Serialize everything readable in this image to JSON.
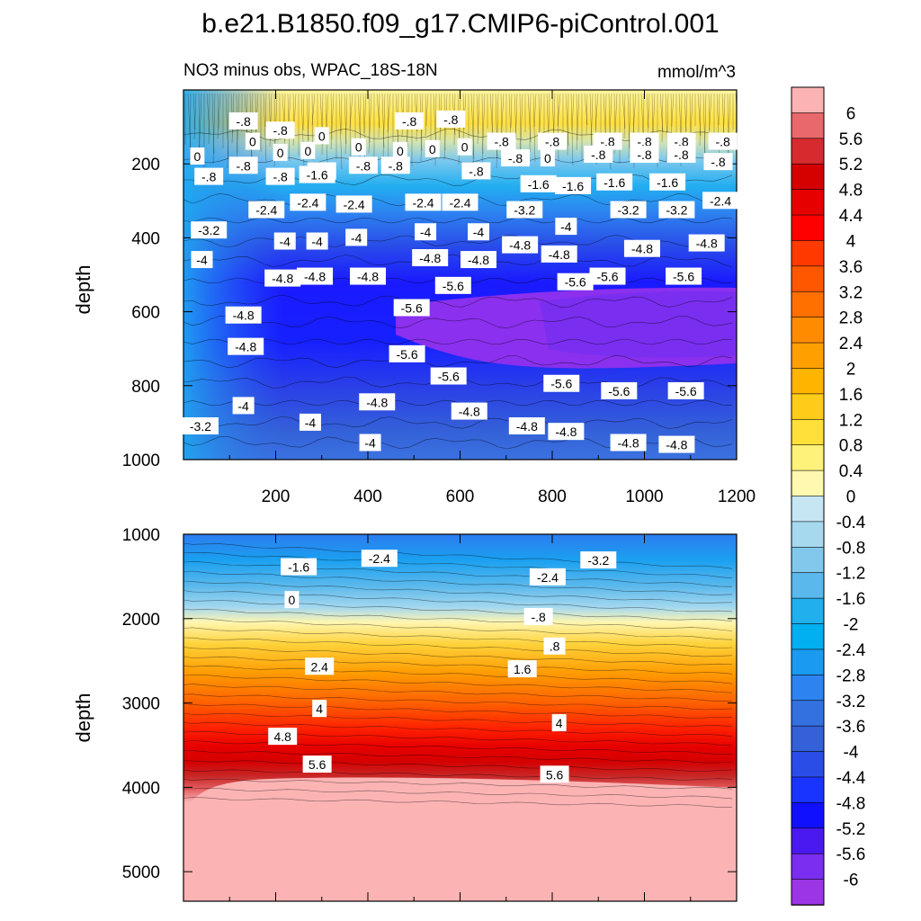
{
  "figure": {
    "title": "b.e21.B1850.f09_g17.CMIP6-piControl.001",
    "subtitle": "NO3 minus obs, WPAC_18S-18N",
    "units": "mmol/m^3"
  },
  "colorbar": {
    "labels": [
      "6",
      "5.6",
      "5.2",
      "4.8",
      "4.4",
      "4",
      "3.6",
      "3.2",
      "2.8",
      "2.4",
      "2",
      "1.6",
      "1.2",
      "0.8",
      "0.4",
      "0",
      "-0.4",
      "-0.8",
      "-1.2",
      "-1.6",
      "-2",
      "-2.4",
      "-2.8",
      "-3.2",
      "-3.6",
      "-4",
      "-4.4",
      "-4.8",
      "-5.2",
      "-5.6",
      "-6"
    ],
    "colors_top_to_bottom": [
      "#fbb3b3",
      "#e8686b",
      "#d72a2e",
      "#d50000",
      "#e60000",
      "#ff0000",
      "#ff3a00",
      "#ff5700",
      "#ff7000",
      "#ff8c00",
      "#ffa000",
      "#ffb400",
      "#ffcc1a",
      "#ffe03a",
      "#fff27a",
      "#fff8b0",
      "#c6e6f4",
      "#a6d8ee",
      "#82c8ec",
      "#5ab8ec",
      "#20b0ee",
      "#00b0f0",
      "#1a9af0",
      "#2d84f0",
      "#3370e0",
      "#3460d8",
      "#2a4de8",
      "#1a34ff",
      "#1010ff",
      "#4a18f0",
      "#7a2ef0",
      "#9b35e6"
    ]
  },
  "chart_data": [
    {
      "type": "heatmap",
      "title": "NO3 minus obs, WPAC_18S-18N",
      "units": "mmol/m^3",
      "xlabel": "",
      "ylabel": "depth",
      "xlim": [
        0,
        1200
      ],
      "ylim": [
        1000,
        0
      ],
      "xticks": [
        200,
        400,
        600,
        800,
        1000,
        1200
      ],
      "yticks": [
        200,
        400,
        600,
        800,
        1000
      ],
      "contour_labels": [
        {
          "x": 130,
          "y": 85,
          "text": "-.8"
        },
        {
          "x": 150,
          "y": 140,
          "text": "0"
        },
        {
          "x": 210,
          "y": 110,
          "text": "-.8"
        },
        {
          "x": 300,
          "y": 125,
          "text": "0"
        },
        {
          "x": 490,
          "y": 85,
          "text": "-.8"
        },
        {
          "x": 580,
          "y": 80,
          "text": "-.8"
        },
        {
          "x": 690,
          "y": 140,
          "text": "-.8"
        },
        {
          "x": 800,
          "y": 140,
          "text": "-.8"
        },
        {
          "x": 920,
          "y": 140,
          "text": "-.8"
        },
        {
          "x": 1000,
          "y": 140,
          "text": "-.8"
        },
        {
          "x": 1080,
          "y": 140,
          "text": "-.8"
        },
        {
          "x": 1170,
          "y": 140,
          "text": "-.8"
        },
        {
          "x": 30,
          "y": 180,
          "text": "0"
        },
        {
          "x": 130,
          "y": 205,
          "text": "-.8"
        },
        {
          "x": 210,
          "y": 170,
          "text": "0"
        },
        {
          "x": 270,
          "y": 165,
          "text": "0"
        },
        {
          "x": 380,
          "y": 155,
          "text": "0"
        },
        {
          "x": 470,
          "y": 165,
          "text": "0"
        },
        {
          "x": 540,
          "y": 160,
          "text": "0"
        },
        {
          "x": 610,
          "y": 155,
          "text": "0"
        },
        {
          "x": 720,
          "y": 185,
          "text": "-.8"
        },
        {
          "x": 790,
          "y": 185,
          "text": "0"
        },
        {
          "x": 900,
          "y": 175,
          "text": "-.8"
        },
        {
          "x": 1000,
          "y": 175,
          "text": "-.8"
        },
        {
          "x": 1080,
          "y": 175,
          "text": "-.8"
        },
        {
          "x": 1160,
          "y": 195,
          "text": "-.8"
        },
        {
          "x": 55,
          "y": 235,
          "text": "-.8"
        },
        {
          "x": 210,
          "y": 235,
          "text": "-.8"
        },
        {
          "x": 300,
          "y": 220,
          "text": "-.8"
        },
        {
          "x": 390,
          "y": 205,
          "text": "-.8"
        },
        {
          "x": 460,
          "y": 205,
          "text": "-.8"
        },
        {
          "x": 635,
          "y": 220,
          "text": "-.8"
        },
        {
          "x": 290,
          "y": 230,
          "text": "-1.6"
        },
        {
          "x": 770,
          "y": 255,
          "text": "-1.6"
        },
        {
          "x": 845,
          "y": 260,
          "text": "-1.6"
        },
        {
          "x": 935,
          "y": 250,
          "text": "-1.6"
        },
        {
          "x": 1050,
          "y": 250,
          "text": "-1.6"
        },
        {
          "x": 180,
          "y": 325,
          "text": "-2.4"
        },
        {
          "x": 270,
          "y": 305,
          "text": "-2.4"
        },
        {
          "x": 370,
          "y": 310,
          "text": "-2.4"
        },
        {
          "x": 520,
          "y": 305,
          "text": "-2.4"
        },
        {
          "x": 600,
          "y": 305,
          "text": "-2.4"
        },
        {
          "x": 1165,
          "y": 300,
          "text": "-2.4"
        },
        {
          "x": 740,
          "y": 325,
          "text": "-3.2"
        },
        {
          "x": 965,
          "y": 325,
          "text": "-3.2"
        },
        {
          "x": 1070,
          "y": 325,
          "text": "-3.2"
        },
        {
          "x": 55,
          "y": 380,
          "text": "-3.2"
        },
        {
          "x": 220,
          "y": 410,
          "text": "-4"
        },
        {
          "x": 290,
          "y": 410,
          "text": "-4"
        },
        {
          "x": 375,
          "y": 400,
          "text": "-4"
        },
        {
          "x": 525,
          "y": 385,
          "text": "-4"
        },
        {
          "x": 640,
          "y": 385,
          "text": "-4"
        },
        {
          "x": 830,
          "y": 370,
          "text": "-4"
        },
        {
          "x": 40,
          "y": 460,
          "text": "-4"
        },
        {
          "x": 535,
          "y": 455,
          "text": "-4.8"
        },
        {
          "x": 640,
          "y": 460,
          "text": "-4.8"
        },
        {
          "x": 730,
          "y": 420,
          "text": "-4.8"
        },
        {
          "x": 815,
          "y": 445,
          "text": "-4.8"
        },
        {
          "x": 995,
          "y": 430,
          "text": "-4.8"
        },
        {
          "x": 1135,
          "y": 415,
          "text": "-4.8"
        },
        {
          "x": 215,
          "y": 510,
          "text": "-4.8"
        },
        {
          "x": 285,
          "y": 505,
          "text": "-4.8"
        },
        {
          "x": 400,
          "y": 505,
          "text": "-4.8"
        },
        {
          "x": 850,
          "y": 520,
          "text": "-5.6"
        },
        {
          "x": 920,
          "y": 505,
          "text": "-5.6"
        },
        {
          "x": 1085,
          "y": 505,
          "text": "-5.6"
        },
        {
          "x": 585,
          "y": 530,
          "text": "-5.6"
        },
        {
          "x": 495,
          "y": 590,
          "text": "-5.6"
        },
        {
          "x": 130,
          "y": 610,
          "text": "-4.8"
        },
        {
          "x": 135,
          "y": 695,
          "text": "-4.8"
        },
        {
          "x": 485,
          "y": 715,
          "text": "-5.6"
        },
        {
          "x": 575,
          "y": 775,
          "text": "-5.6"
        },
        {
          "x": 820,
          "y": 795,
          "text": "-5.6"
        },
        {
          "x": 945,
          "y": 815,
          "text": "-5.6"
        },
        {
          "x": 1090,
          "y": 815,
          "text": "-5.6"
        },
        {
          "x": 130,
          "y": 855,
          "text": "-4"
        },
        {
          "x": 420,
          "y": 845,
          "text": "-4.8"
        },
        {
          "x": 620,
          "y": 870,
          "text": "-4.8"
        },
        {
          "x": 37,
          "y": 910,
          "text": "-3.2"
        },
        {
          "x": 275,
          "y": 900,
          "text": "-4"
        },
        {
          "x": 745,
          "y": 910,
          "text": "-4.8"
        },
        {
          "x": 830,
          "y": 925,
          "text": "-4.8"
        },
        {
          "x": 965,
          "y": 955,
          "text": "-4.8"
        },
        {
          "x": 1070,
          "y": 960,
          "text": "-4.8"
        },
        {
          "x": 405,
          "y": 955,
          "text": "-4"
        }
      ]
    },
    {
      "type": "heatmap",
      "xlabel": "",
      "ylabel": "depth",
      "xlim": [
        0,
        1200
      ],
      "ylim": [
        5350,
        1000
      ],
      "xticks": [
        200,
        400,
        600,
        800,
        1000,
        1200
      ],
      "yticks": [
        1000,
        2000,
        3000,
        4000,
        5000
      ],
      "contour_labels": [
        {
          "x": 250,
          "y": 1390,
          "text": "-1.6"
        },
        {
          "x": 425,
          "y": 1290,
          "text": "-2.4"
        },
        {
          "x": 790,
          "y": 1510,
          "text": "-2.4"
        },
        {
          "x": 900,
          "y": 1310,
          "text": "-3.2"
        },
        {
          "x": 235,
          "y": 1780,
          "text": "0"
        },
        {
          "x": 770,
          "y": 1980,
          "text": "-.8"
        },
        {
          "x": 805,
          "y": 2330,
          "text": ".8"
        },
        {
          "x": 295,
          "y": 2570,
          "text": "2.4"
        },
        {
          "x": 735,
          "y": 2600,
          "text": "1.6"
        },
        {
          "x": 295,
          "y": 3070,
          "text": "4"
        },
        {
          "x": 815,
          "y": 3240,
          "text": "4"
        },
        {
          "x": 215,
          "y": 3400,
          "text": "4.8"
        },
        {
          "x": 290,
          "y": 3730,
          "text": "5.6"
        },
        {
          "x": 805,
          "y": 3850,
          "text": "5.6"
        }
      ]
    }
  ]
}
